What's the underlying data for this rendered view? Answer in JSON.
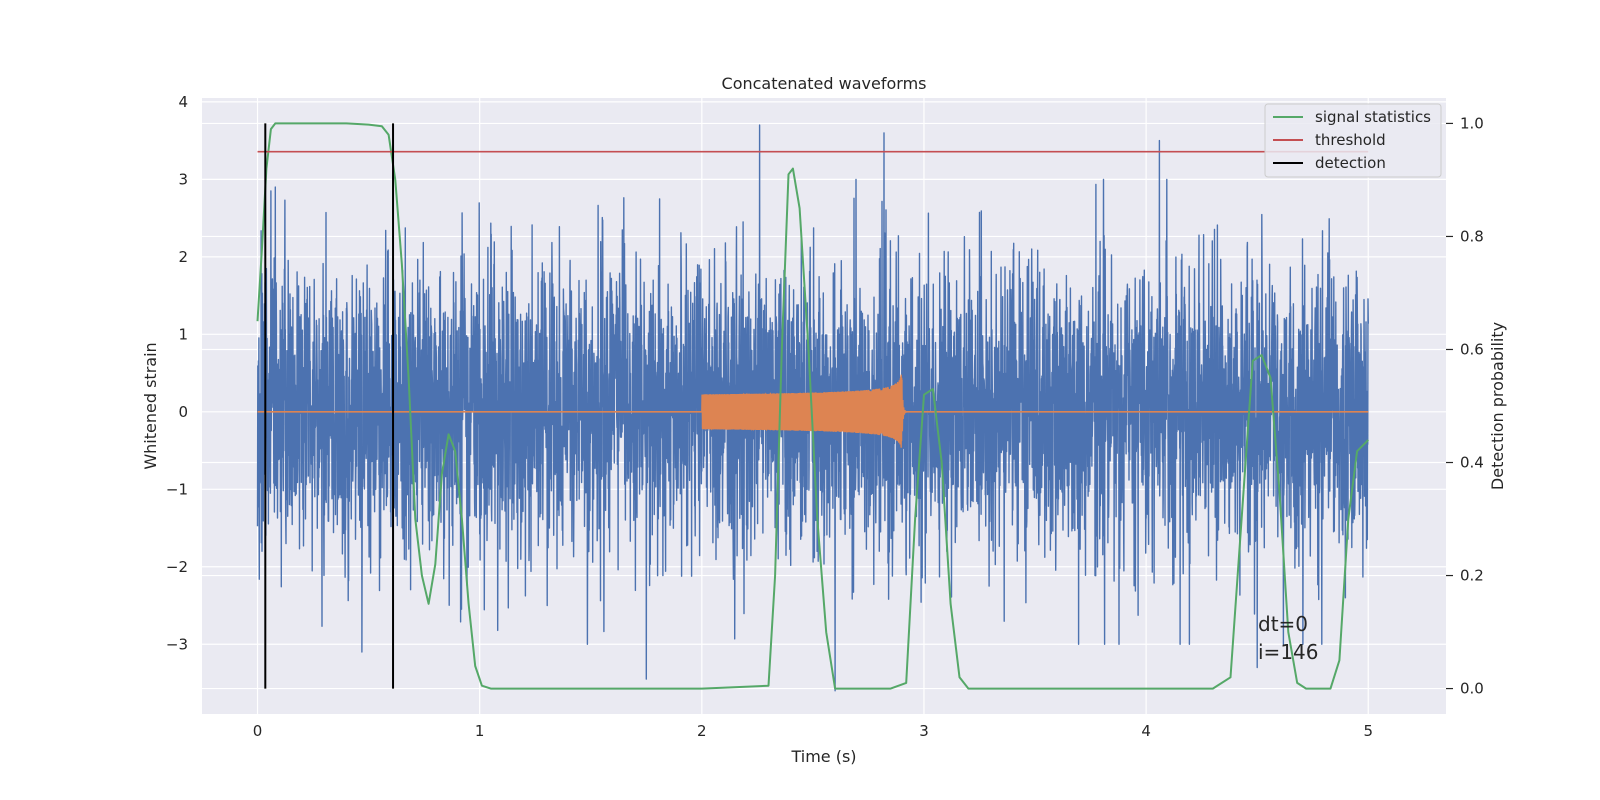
{
  "chart_data": {
    "type": "line",
    "title": "Concatenated waveforms",
    "xlabel": "Time (s)",
    "ylabel": "Whitened strain",
    "y2label": "Detection probability",
    "xlim": [
      -0.25,
      5.35
    ],
    "ylim": [
      -3.9,
      4.05
    ],
    "y2lim": [
      -0.045,
      1.045
    ],
    "xticks": [
      0,
      1,
      2,
      3,
      4,
      5
    ],
    "yticks": [
      -3,
      -2,
      -1,
      0,
      1,
      2,
      3,
      4
    ],
    "y2ticks": [
      0.0,
      0.2,
      0.4,
      0.6,
      0.8,
      1.0
    ],
    "ytick_labels": [
      "−3",
      "−2",
      "−1",
      "0",
      "1",
      "2",
      "3",
      "4"
    ],
    "y2tick_labels": [
      "0.0",
      "0.2",
      "0.4",
      "0.6",
      "0.8",
      "1.0"
    ],
    "grid": true,
    "legend_position": "top-right",
    "series": [
      {
        "name": "strain",
        "axis": "left",
        "color": "#4c72b0",
        "kind": "noise",
        "x_range": [
          0,
          5
        ],
        "sigma": 1.0,
        "spikes": [
          [
            0.06,
            2.85
          ],
          [
            0.08,
            2.9
          ],
          [
            0.47,
            -3.1
          ],
          [
            1.75,
            -3.45
          ],
          [
            2.26,
            3.7
          ],
          [
            2.6,
            -3.6
          ],
          [
            2.82,
            3.6
          ],
          [
            4.06,
            3.5
          ],
          [
            4.5,
            -3.3
          ],
          [
            0.02,
            -1.8
          ],
          [
            0.62,
            0.97
          ]
        ]
      },
      {
        "name": "chirp",
        "axis": "left",
        "color": "#dd8452",
        "kind": "chirp",
        "x_range": [
          2.0,
          2.92
        ],
        "amp_start": 0.12,
        "amp_peak": 0.53,
        "t_merge": 2.9
      },
      {
        "name": "signal statistics",
        "axis": "right",
        "color": "#55a868",
        "points": [
          [
            0.0,
            0.65
          ],
          [
            0.02,
            0.78
          ],
          [
            0.04,
            0.92
          ],
          [
            0.06,
            0.99
          ],
          [
            0.08,
            1.0
          ],
          [
            0.2,
            1.0
          ],
          [
            0.4,
            1.0
          ],
          [
            0.5,
            0.998
          ],
          [
            0.56,
            0.995
          ],
          [
            0.59,
            0.98
          ],
          [
            0.62,
            0.9
          ],
          [
            0.65,
            0.75
          ],
          [
            0.68,
            0.55
          ],
          [
            0.71,
            0.3
          ],
          [
            0.74,
            0.2
          ],
          [
            0.77,
            0.15
          ],
          [
            0.8,
            0.22
          ],
          [
            0.83,
            0.38
          ],
          [
            0.86,
            0.45
          ],
          [
            0.89,
            0.42
          ],
          [
            0.92,
            0.3
          ],
          [
            0.95,
            0.15
          ],
          [
            0.98,
            0.04
          ],
          [
            1.01,
            0.005
          ],
          [
            1.05,
            0.0
          ],
          [
            2.0,
            0.0
          ],
          [
            2.3,
            0.005
          ],
          [
            2.33,
            0.2
          ],
          [
            2.36,
            0.6
          ],
          [
            2.39,
            0.91
          ],
          [
            2.41,
            0.92
          ],
          [
            2.44,
            0.85
          ],
          [
            2.48,
            0.6
          ],
          [
            2.52,
            0.3
          ],
          [
            2.56,
            0.1
          ],
          [
            2.6,
            0.0
          ],
          [
            2.85,
            0.0
          ],
          [
            2.92,
            0.01
          ],
          [
            2.96,
            0.3
          ],
          [
            3.0,
            0.52
          ],
          [
            3.04,
            0.53
          ],
          [
            3.08,
            0.4
          ],
          [
            3.12,
            0.15
          ],
          [
            3.16,
            0.02
          ],
          [
            3.2,
            0.0
          ],
          [
            4.3,
            0.0
          ],
          [
            4.38,
            0.02
          ],
          [
            4.43,
            0.3
          ],
          [
            4.48,
            0.58
          ],
          [
            4.52,
            0.59
          ],
          [
            4.56,
            0.55
          ],
          [
            4.6,
            0.35
          ],
          [
            4.64,
            0.1
          ],
          [
            4.68,
            0.01
          ],
          [
            4.72,
            0.0
          ],
          [
            4.83,
            0.0
          ],
          [
            4.87,
            0.05
          ],
          [
            4.91,
            0.3
          ],
          [
            4.95,
            0.42
          ],
          [
            5.0,
            0.44
          ]
        ]
      },
      {
        "name": "threshold",
        "axis": "right",
        "color": "#c44e52",
        "value": 0.95,
        "x_range": [
          0,
          5
        ]
      },
      {
        "name": "detection",
        "axis": "right",
        "color": "#000000",
        "x": [
          0.035,
          0.61
        ],
        "y_range": [
          0.0,
          1.0
        ]
      }
    ],
    "annotations": [
      "dt=0",
      "i=146"
    ]
  }
}
